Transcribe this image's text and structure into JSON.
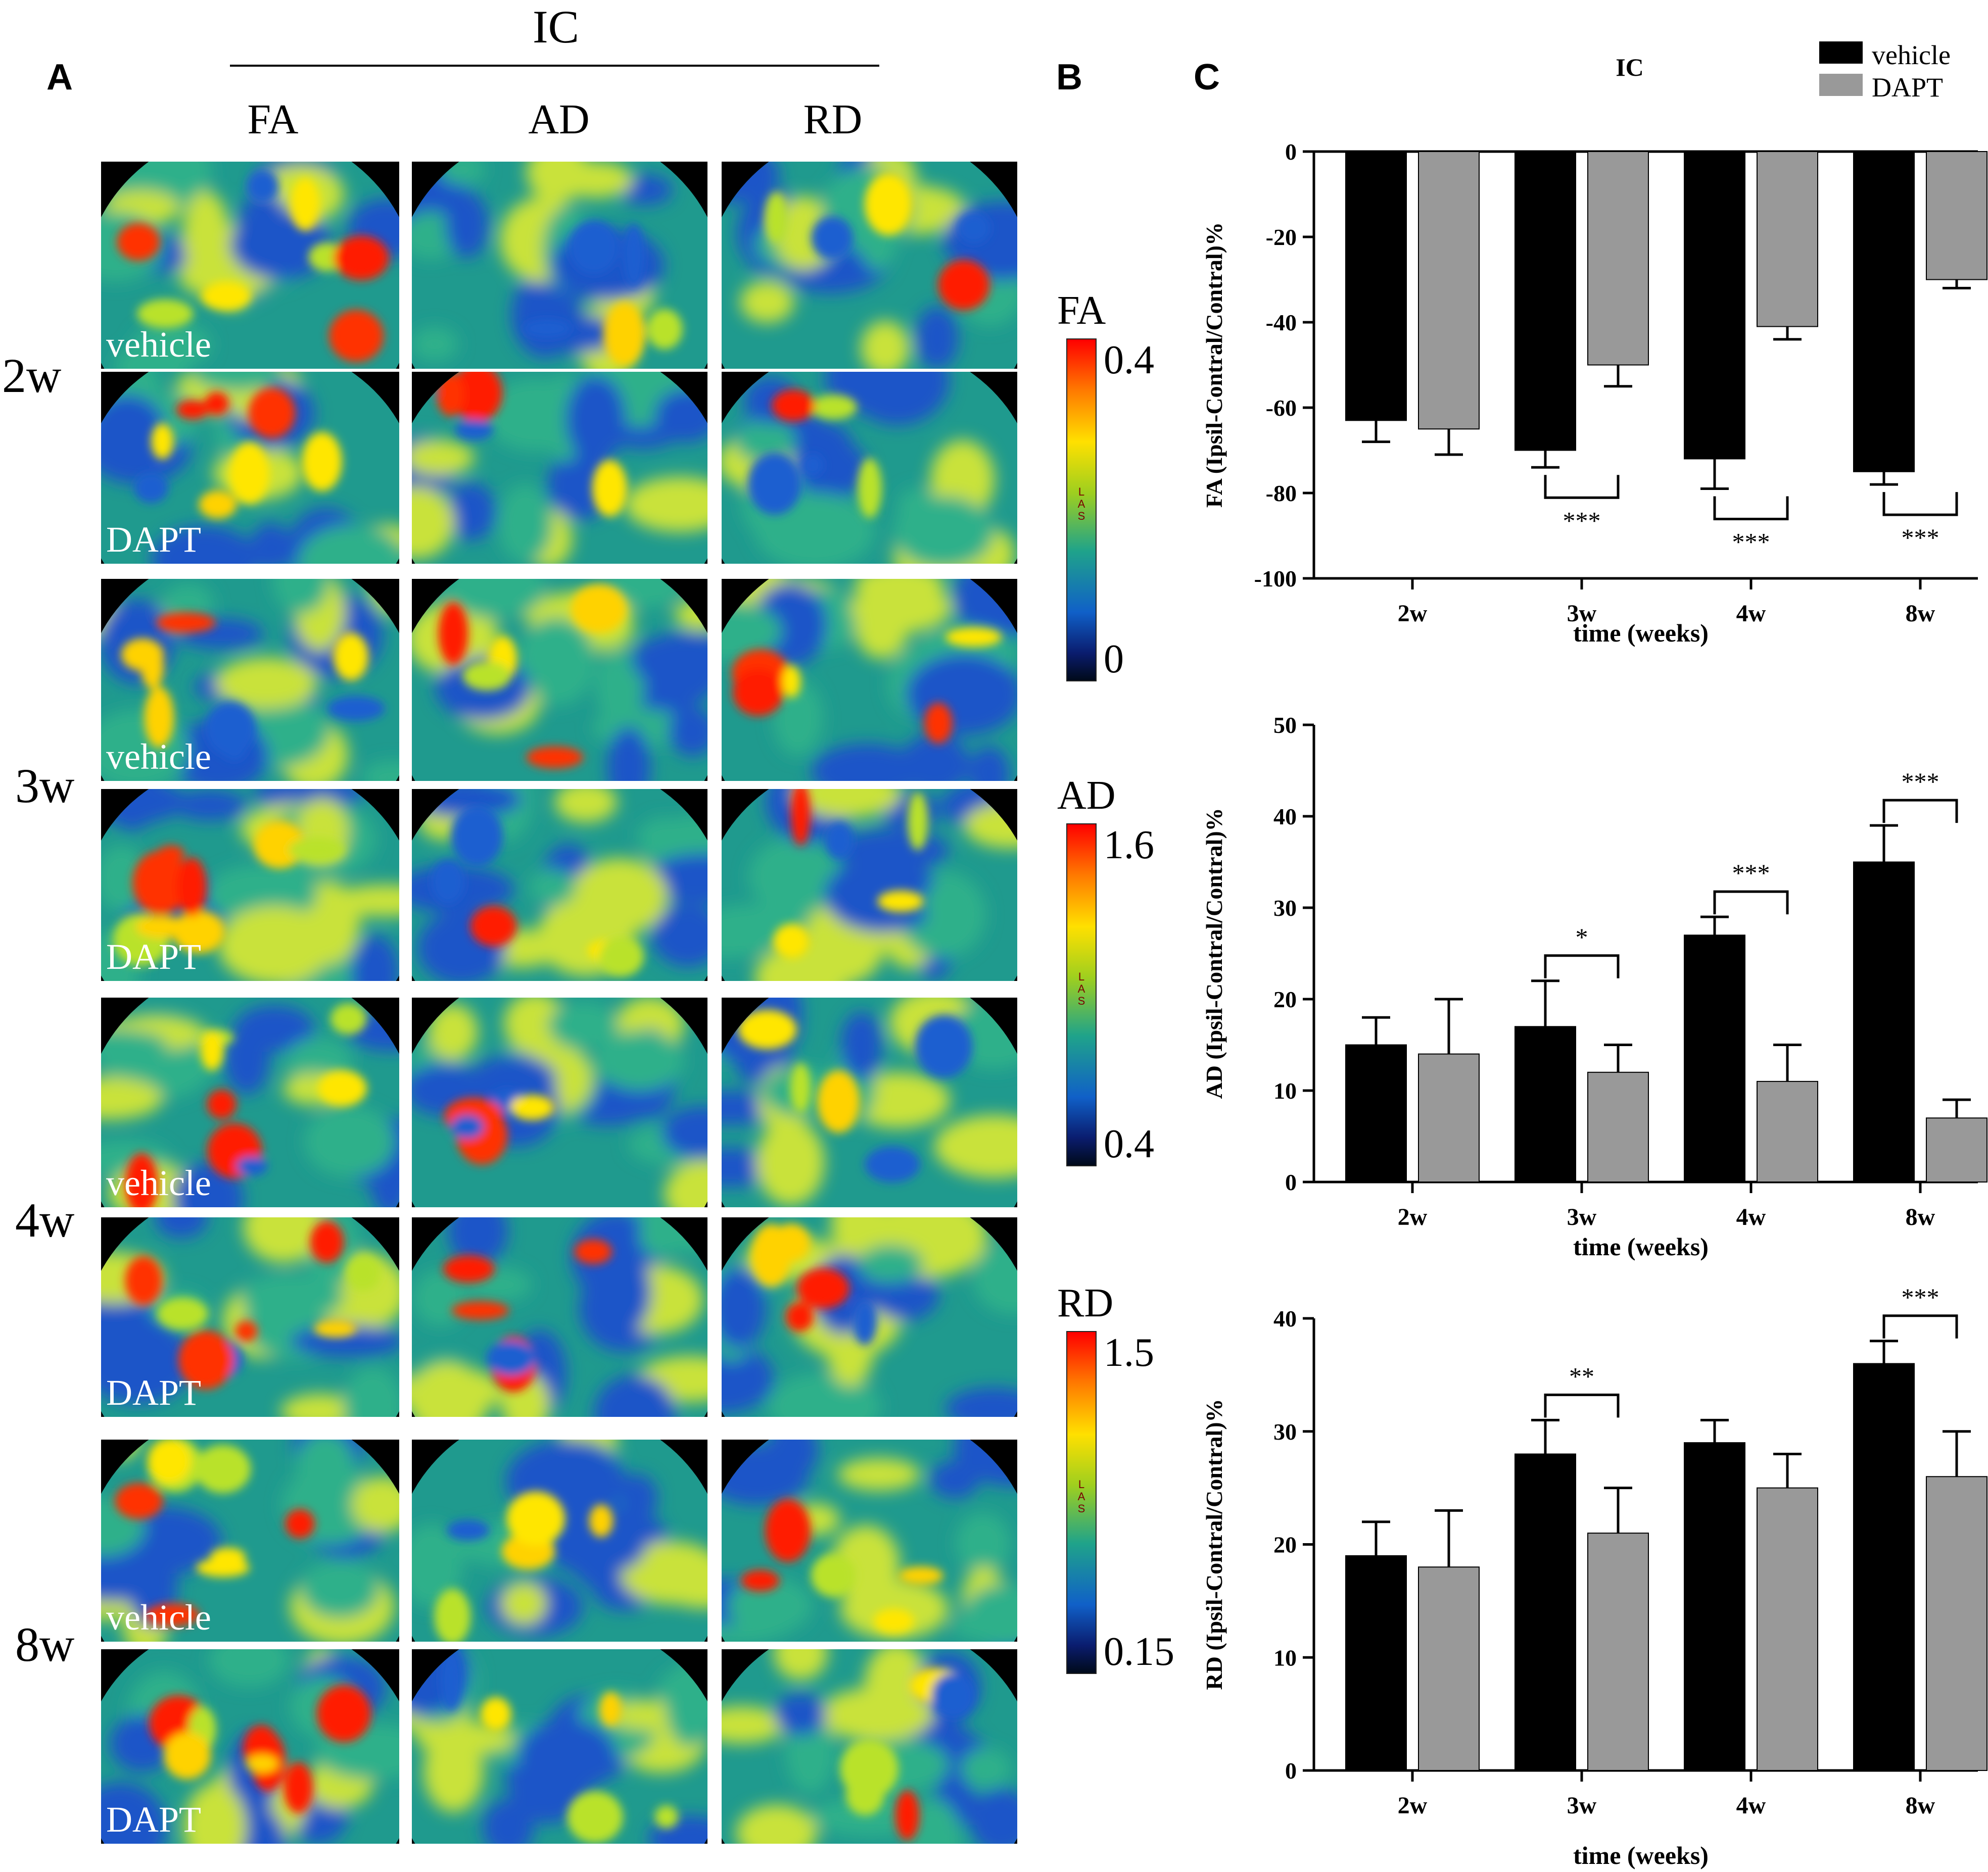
{
  "panels": {
    "a": "A",
    "b": "B",
    "c": "C"
  },
  "panel_a": {
    "group_label": "IC",
    "columns": [
      "FA",
      "AD",
      "RD"
    ],
    "timepoints": [
      "2w",
      "3w",
      "4w",
      "8w"
    ],
    "treatments": [
      "vehicle",
      "DAPT"
    ]
  },
  "panel_b": {
    "scales": [
      {
        "name": "FA",
        "max": "0.4",
        "min": "0",
        "mark": "LAS"
      },
      {
        "name": "AD",
        "max": "1.6",
        "min": "0.4",
        "mark": "LAS"
      },
      {
        "name": "RD",
        "max": "1.5",
        "min": "0.15",
        "mark": "LAS"
      }
    ]
  },
  "colors": {
    "vehicle": "#000000",
    "DAPT": "#999999"
  },
  "chart_data": [
    {
      "type": "bar",
      "title": "IC",
      "xlabel": "time (weeks)",
      "ylabel": "FA (Ipsil-Contral/Contral)%",
      "categories": [
        "2w",
        "3w",
        "4w",
        "8w"
      ],
      "ylim": [
        -100,
        0
      ],
      "yticks": [
        0,
        -20,
        -40,
        -60,
        -80,
        -100
      ],
      "legend": "top-right",
      "series": [
        {
          "name": "vehicle",
          "values": [
            -63,
            -70,
            -72,
            -75
          ],
          "errors": [
            5,
            4,
            7,
            3
          ]
        },
        {
          "name": "DAPT",
          "values": [
            -65,
            -50,
            -41,
            -30
          ],
          "errors": [
            6,
            5,
            3,
            2
          ]
        }
      ],
      "significance": [
        {
          "category": "3w",
          "label": "***"
        },
        {
          "category": "4w",
          "label": "***"
        },
        {
          "category": "8w",
          "label": "***"
        }
      ]
    },
    {
      "type": "bar",
      "xlabel": "time (weeks)",
      "ylabel": "AD (Ipsil-Contral/Contral)%",
      "categories": [
        "2w",
        "3w",
        "4w",
        "8w"
      ],
      "ylim": [
        0,
        50
      ],
      "yticks": [
        0,
        10,
        20,
        30,
        40,
        50
      ],
      "series": [
        {
          "name": "vehicle",
          "values": [
            15,
            17,
            27,
            35
          ],
          "errors": [
            3,
            5,
            2,
            4
          ]
        },
        {
          "name": "DAPT",
          "values": [
            14,
            12,
            11,
            7
          ],
          "errors": [
            6,
            3,
            4,
            2
          ]
        }
      ],
      "significance": [
        {
          "category": "3w",
          "label": "*"
        },
        {
          "category": "4w",
          "label": "***"
        },
        {
          "category": "8w",
          "label": "***"
        }
      ]
    },
    {
      "type": "bar",
      "xlabel": "time (weeks)",
      "ylabel": "RD (Ipsil-Contral/Contral)%",
      "categories": [
        "2w",
        "3w",
        "4w",
        "8w"
      ],
      "ylim": [
        0,
        40
      ],
      "yticks": [
        0,
        10,
        20,
        30,
        40
      ],
      "series": [
        {
          "name": "vehicle",
          "values": [
            19,
            28,
            29,
            36
          ],
          "errors": [
            3,
            3,
            2,
            2
          ]
        },
        {
          "name": "DAPT",
          "values": [
            18,
            21,
            25,
            26
          ],
          "errors": [
            5,
            4,
            3,
            4
          ]
        }
      ],
      "significance": [
        {
          "category": "3w",
          "label": "**"
        },
        {
          "category": "8w",
          "label": "***"
        }
      ]
    }
  ]
}
